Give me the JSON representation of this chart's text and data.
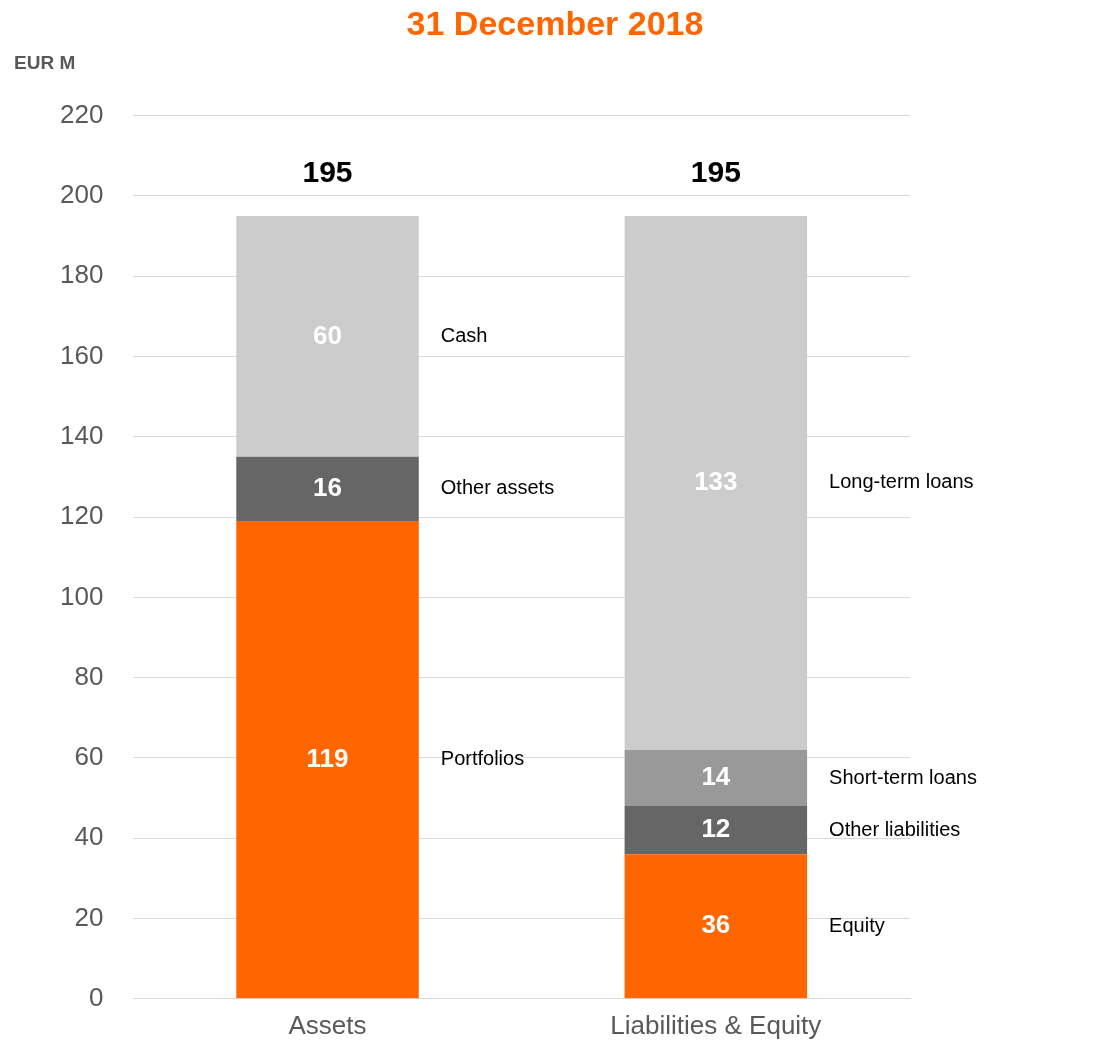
{
  "chart_data": {
    "type": "bar",
    "title": "31 December 2018",
    "ylabel": "EUR M",
    "categories": [
      "Assets",
      "Liabilities & Equity"
    ],
    "series": [
      {
        "color": "#ff6600",
        "values": [
          119,
          36
        ]
      },
      {
        "color": "#666666",
        "values": [
          16,
          12
        ]
      },
      {
        "color": "#999999",
        "values": [
          null,
          14
        ]
      },
      {
        "color": "#cccccc",
        "values": [
          60,
          133
        ]
      }
    ],
    "stacked": true,
    "data_labels": true,
    "totals": [
      "195",
      "195"
    ],
    "ylim": [
      0,
      220
    ],
    "yticks": [
      0,
      20,
      40,
      60,
      80,
      100,
      120,
      140,
      160,
      180,
      200,
      220
    ],
    "grid": "y",
    "legend": false,
    "annotations": [
      "Cash",
      "Other assets",
      "Portfolios",
      "Long-term loans",
      "Short-term loans",
      "Other liabilities",
      "Equity"
    ]
  }
}
